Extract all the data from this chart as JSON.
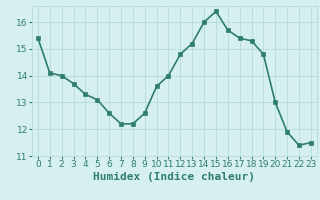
{
  "x": [
    0,
    1,
    2,
    3,
    4,
    5,
    6,
    7,
    8,
    9,
    10,
    11,
    12,
    13,
    14,
    15,
    16,
    17,
    18,
    19,
    20,
    21,
    22,
    23
  ],
  "y": [
    15.4,
    14.1,
    14.0,
    13.7,
    13.3,
    13.1,
    12.6,
    12.2,
    12.2,
    12.6,
    13.6,
    14.0,
    14.8,
    15.2,
    16.0,
    16.4,
    15.7,
    15.4,
    15.3,
    14.8,
    13.0,
    11.9,
    11.4,
    11.5
  ],
  "line_color": "#2e7d6e",
  "marker_color": "#2e7d6e",
  "bg_color": "#d6f0f0",
  "grid_color": "#b8dede",
  "xlabel": "Humidex (Indice chaleur)",
  "ylim": [
    11,
    16.6
  ],
  "xlim": [
    -0.5,
    23.5
  ],
  "yticks": [
    11,
    12,
    13,
    14,
    15,
    16
  ],
  "xticks": [
    0,
    1,
    2,
    3,
    4,
    5,
    6,
    7,
    8,
    9,
    10,
    11,
    12,
    13,
    14,
    15,
    16,
    17,
    18,
    19,
    20,
    21,
    22,
    23
  ],
  "font_color": "#2e7d6e",
  "xlabel_fontsize": 8,
  "tick_fontsize": 6.5,
  "linewidth": 1.2,
  "markersize": 2.8
}
